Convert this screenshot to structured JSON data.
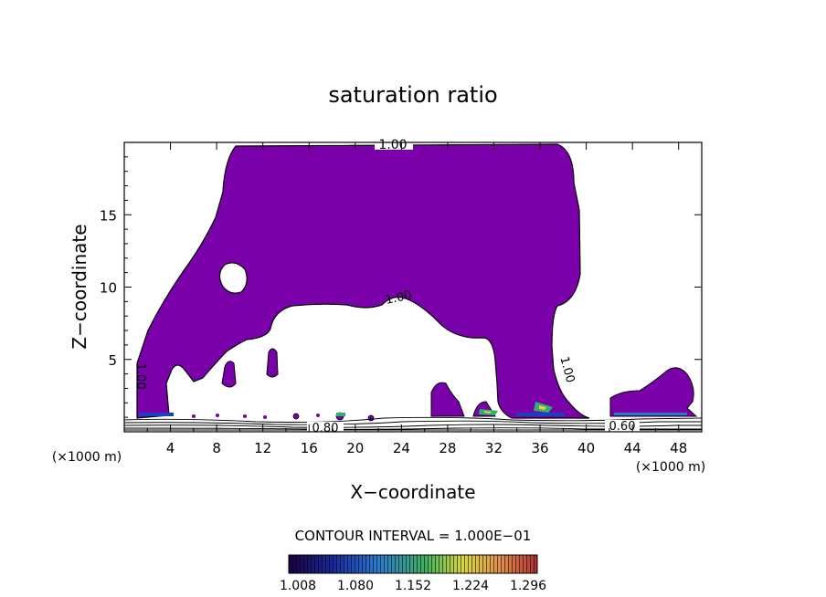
{
  "chart_data": {
    "type": "contour",
    "title": "saturation ratio",
    "xlabel": "X−coordinate",
    "ylabel": "Z−coordinate",
    "x_unit_left": "(×1000 m)",
    "x_unit_right": "(×1000 m)",
    "xlim": [
      0,
      50
    ],
    "ylim": [
      0,
      20
    ],
    "x_ticks": [
      4,
      8,
      12,
      16,
      20,
      24,
      28,
      32,
      36,
      40,
      44,
      48
    ],
    "y_ticks": [
      5,
      10,
      15
    ],
    "contour_labels": [
      "1.00",
      "1.00",
      "1.00",
      "1.00",
      "0.80",
      "0.60"
    ],
    "contour_interval_text": "CONTOUR INTERVAL = 1.000E−01",
    "colorbar_ticks": [
      "1.008",
      "1.080",
      "1.152",
      "1.224",
      "1.296"
    ],
    "colors": {
      "cloud_fill": "#7a00aa",
      "colorbar_stops": [
        "#1a0040",
        "#1a2a9a",
        "#2a7ad0",
        "#3fb060",
        "#e8e040",
        "#e09050",
        "#b03030"
      ]
    }
  }
}
